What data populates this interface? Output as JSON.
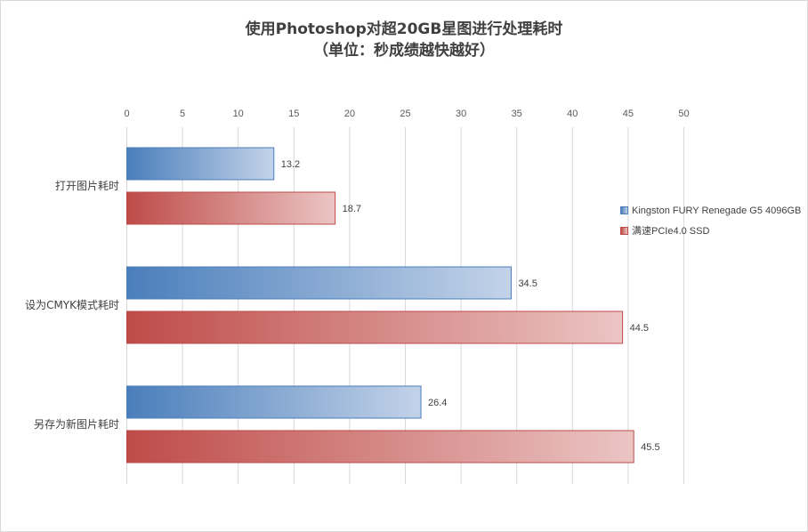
{
  "title_line1": "使用Photoshop对超20GB星图进行处理耗时",
  "title_line2": "（单位：秒成绩越快越好）",
  "chart_data": {
    "type": "bar",
    "orientation": "horizontal",
    "title": "使用Photoshop对超20GB星图进行处理耗时（单位：秒成绩越快越好）",
    "categories": [
      "打开图片耗时",
      "设为CMYK模式耗时",
      "另存为新图片耗时"
    ],
    "series": [
      {
        "name": "Kingston FURY Renegade G5 4096GB",
        "values": [
          13.2,
          34.5,
          26.4
        ],
        "color": "#4a7ebb"
      },
      {
        "name": "满速PCIe4.0 SSD",
        "values": [
          18.7,
          44.5,
          45.5
        ],
        "color": "#be4b48"
      }
    ],
    "xlim": [
      0,
      50
    ],
    "ticks": [
      "0",
      "5",
      "10",
      "15",
      "20",
      "25",
      "30",
      "35",
      "40",
      "45",
      "50"
    ],
    "x_axis_position": "top",
    "grid": true,
    "legend_position": "right",
    "data_labels": true
  }
}
